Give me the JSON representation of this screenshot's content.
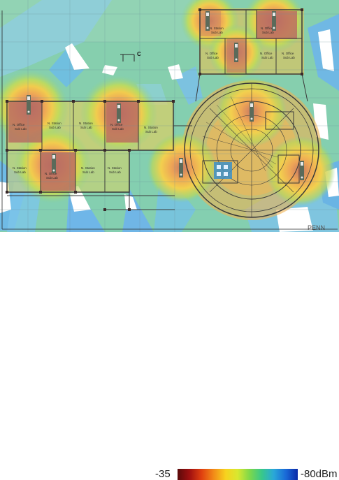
{
  "legend": {
    "min_label": "-35",
    "max_label": "-80dBm",
    "min_dbm": -35,
    "max_dbm": -80,
    "gradient_colors": [
      "#5a0a0a",
      "#a01010",
      "#e04010",
      "#f28a18",
      "#f7d21e",
      "#d8e830",
      "#7ed84a",
      "#38c88a",
      "#2aa8d8",
      "#1a6ad8",
      "#0a2aa8"
    ]
  },
  "map": {
    "compass_label": "C",
    "corner_text": "PENN",
    "zone_colors": {
      "strong": "#c9796e",
      "high": "#ef9b55",
      "mid": "#f3c24c",
      "good": "#c7da52",
      "fair": "#83d18c",
      "weak": "#7fc6e6",
      "none": "#ffffff"
    },
    "access_point_icon": "access-point-icon",
    "rooms": [
      {
        "id": "r1",
        "name": "N. Office",
        "sub": "Sub Lab"
      },
      {
        "id": "r2",
        "name": "N. Station",
        "sub": "Sub Lab"
      },
      {
        "id": "r3",
        "name": "N. Station",
        "sub": "Sub Lab"
      },
      {
        "id": "r4",
        "name": "N. Station",
        "sub": "Sub Lab"
      },
      {
        "id": "r5",
        "name": "N. Office",
        "sub": "Sub Lab"
      },
      {
        "id": "r6",
        "name": "N. Station",
        "sub": "Sub Lab"
      },
      {
        "id": "r7",
        "name": "N. Station",
        "sub": "Sub Lab"
      },
      {
        "id": "r8",
        "name": "N. Office",
        "sub": "Sub Lab"
      },
      {
        "id": "r9",
        "name": "N. Station",
        "sub": "Sub Lab"
      },
      {
        "id": "r10",
        "name": "N. Station",
        "sub": "Sub Lab"
      },
      {
        "id": "r11",
        "name": "N. Office",
        "sub": "Sub Lab"
      },
      {
        "id": "r12",
        "name": "N. Office",
        "sub": "Sub Lab"
      },
      {
        "id": "r13",
        "name": "N. Office",
        "sub": "Sub Lab"
      },
      {
        "id": "r14",
        "name": "N. Office",
        "sub": "Sub Lab"
      }
    ]
  }
}
